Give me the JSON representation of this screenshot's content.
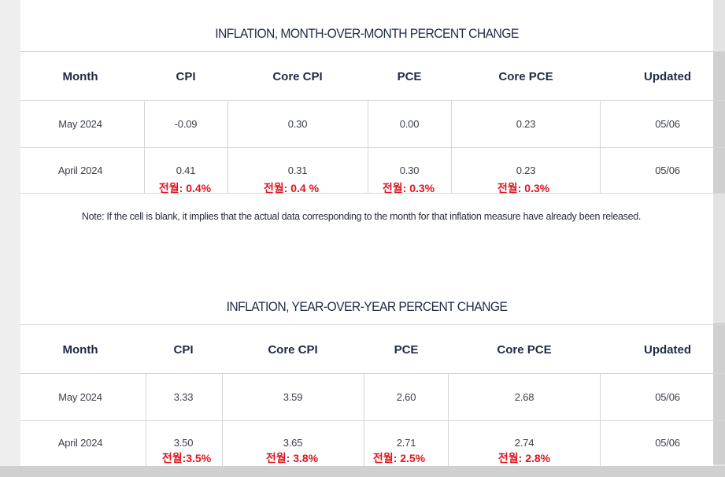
{
  "mom": {
    "title": "INFLATION, MONTH-OVER-MONTH PERCENT CHANGE",
    "headers": [
      "Month",
      "CPI",
      "Core CPI",
      "PCE",
      "Core PCE",
      "Updated"
    ],
    "rows": [
      {
        "month": "May 2024",
        "cpi": "-0.09",
        "core_cpi": "0.30",
        "pce": "0.00",
        "core_pce": "0.23",
        "updated": "05/06"
      },
      {
        "month": "April 2024",
        "cpi": "0.41",
        "core_cpi": "0.31",
        "pce": "0.30",
        "core_pce": "0.23",
        "updated": "05/06"
      }
    ],
    "prev_notes": [
      "전월: 0.4%",
      "전월: 0.4 %",
      "전월: 0.3%",
      "전월: 0.3%"
    ]
  },
  "footnote": "Note: If the cell is blank, it implies that the actual data corresponding to the month for that inflation measure have already been released.",
  "yoy": {
    "title": "INFLATION, YEAR-OVER-YEAR PERCENT CHANGE",
    "headers": [
      "Month",
      "CPI",
      "Core CPI",
      "PCE",
      "Core PCE",
      "Updated"
    ],
    "rows": [
      {
        "month": "May 2024",
        "cpi": "3.33",
        "core_cpi": "3.59",
        "pce": "2.60",
        "core_pce": "2.68",
        "updated": "05/06"
      },
      {
        "month": "April 2024",
        "cpi": "3.50",
        "core_cpi": "3.65",
        "pce": "2.71",
        "core_pce": "2.74",
        "updated": "05/06"
      }
    ],
    "prev_notes": [
      "전월:3.5%",
      "전월: 3.8%",
      "전월: 2.5%",
      "전월: 2.8%"
    ]
  },
  "colors": {
    "header_text": "#1f2a44",
    "annotation_red": "#e0141e",
    "grid": "#d6d6d6"
  }
}
